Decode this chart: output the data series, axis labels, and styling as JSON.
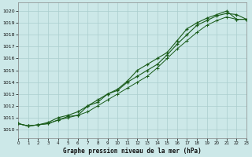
{
  "title": "Graphe pression niveau de la mer (hPa)",
  "bg_color": "#cce8e8",
  "grid_color": "#aacece",
  "line_color": "#1a5c1a",
  "xlim": [
    0,
    23
  ],
  "ylim": [
    1009.3,
    1020.7
  ],
  "yticks": [
    1010,
    1011,
    1012,
    1013,
    1014,
    1015,
    1016,
    1017,
    1018,
    1019,
    1020
  ],
  "xticks": [
    0,
    1,
    2,
    3,
    4,
    5,
    6,
    7,
    8,
    9,
    10,
    11,
    12,
    13,
    14,
    15,
    16,
    17,
    18,
    19,
    20,
    21,
    22,
    23
  ],
  "s1_y": [
    1010.5,
    1010.3,
    1010.4,
    1010.5,
    1010.8,
    1011.1,
    1011.2,
    1012.0,
    1012.3,
    1013.0,
    1013.4,
    1014.1,
    1015.0,
    1015.5,
    1016.0,
    1016.5,
    1017.5,
    1018.5,
    1019.0,
    1019.4,
    1019.7,
    1020.0,
    1019.3,
    1019.3
  ],
  "s2_y": [
    1010.5,
    1010.3,
    1010.4,
    1010.6,
    1011.0,
    1011.2,
    1011.5,
    1012.0,
    1012.5,
    1013.0,
    1013.3,
    1014.0,
    1014.5,
    1015.0,
    1015.5,
    1016.3,
    1017.2,
    1018.0,
    1018.8,
    1019.2,
    1019.6,
    1019.8,
    1019.7,
    1019.3
  ],
  "s3_y": [
    1010.5,
    1010.3,
    1010.4,
    1010.5,
    1010.8,
    1011.0,
    1011.2,
    1011.5,
    1012.0,
    1012.5,
    1013.0,
    1013.5,
    1014.0,
    1014.5,
    1015.2,
    1016.0,
    1016.8,
    1017.5,
    1018.2,
    1018.8,
    1019.2,
    1019.5,
    1019.3,
    1019.3
  ]
}
